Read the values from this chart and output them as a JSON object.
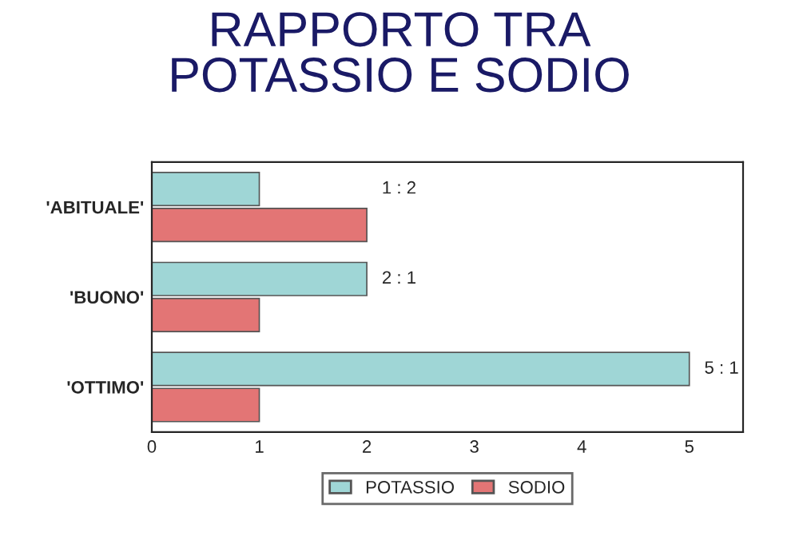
{
  "chart_data": {
    "type": "bar",
    "orientation": "horizontal",
    "title": "RAPPORTO TRA\nPOTASSIO E SODIO",
    "categories": [
      "'ABITUALE'",
      "'BUONO'",
      "'OTTIMO'"
    ],
    "series": [
      {
        "name": "POTASSIO",
        "color": "#9fd6d6",
        "values": [
          1,
          2,
          5
        ]
      },
      {
        "name": "SODIO",
        "color": "#e37575",
        "values": [
          2,
          1,
          1
        ]
      }
    ],
    "xlim": [
      0,
      5.5
    ],
    "xticks": [
      0,
      1,
      2,
      3,
      4,
      5
    ],
    "grid": false,
    "legend": "bottom",
    "annotations": [
      "1 : 2",
      "2 : 1",
      "5 : 1"
    ]
  }
}
